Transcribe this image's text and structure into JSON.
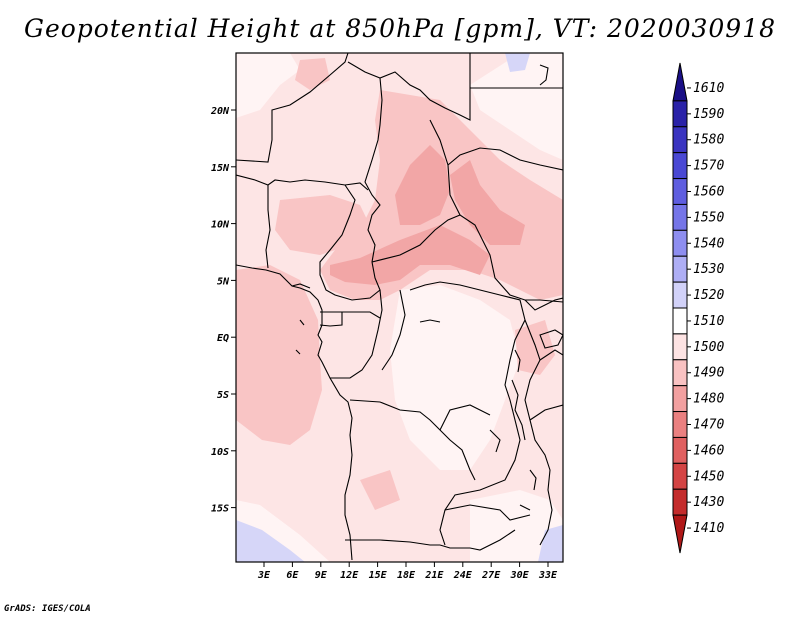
{
  "title": "Geopotential Height at 850hPa [gpm], VT: 2020030918",
  "footer": "GrADS: IGES/COLA",
  "map": {
    "lat_ticks": [
      "20N",
      "15N",
      "10N",
      "5N",
      "EQ",
      "5S",
      "10S",
      "15S"
    ],
    "lon_ticks": [
      "3E",
      "6E",
      "9E",
      "12E",
      "15E",
      "18E",
      "21E",
      "24E",
      "27E",
      "30E",
      "33E"
    ]
  },
  "colorbar": {
    "levels": [
      "1610",
      "1590",
      "1580",
      "1570",
      "1560",
      "1550",
      "1540",
      "1530",
      "1520",
      "1510",
      "1500",
      "1490",
      "1480",
      "1470",
      "1460",
      "1450",
      "1430",
      "1410"
    ],
    "colors": [
      "#1a0f86",
      "#2a22a8",
      "#3a34c0",
      "#4a48d4",
      "#5f5ee0",
      "#7575e8",
      "#8e8ef0",
      "#aeaef5",
      "#d2d2f9",
      "#ffffff",
      "#fde3e3",
      "#f9c2c2",
      "#f2a0a0",
      "#ea8080",
      "#e06060",
      "#d44444",
      "#c42c2c",
      "#b01818"
    ]
  }
}
